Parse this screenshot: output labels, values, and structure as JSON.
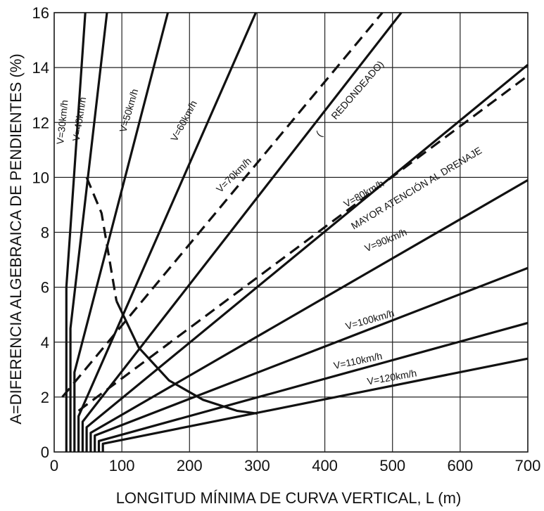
{
  "chart_data": {
    "type": "line",
    "title": "",
    "xlabel": "LONGITUD MÍNIMA DE CURVA VERTICAL, L (m)",
    "ylabel": "A=DIFERENCIA ALGEBRAICA DE PENDIENTES (%)",
    "xlim": [
      0,
      700
    ],
    "ylim": [
      0,
      16
    ],
    "xticks": [
      "0",
      "100",
      "200",
      "300",
      "400",
      "500",
      "600",
      "700"
    ],
    "yticks": [
      "0",
      "2",
      "4",
      "6",
      "8",
      "10",
      "12",
      "14",
      "16"
    ],
    "grid": true,
    "colors": {
      "line": "#111111",
      "grid": "#222222"
    },
    "series": [
      {
        "name": "V=30km/h",
        "style": "solid",
        "points": [
          [
            18,
            0
          ],
          [
            18,
            6
          ],
          [
            46,
            16
          ]
        ]
      },
      {
        "name": "V=40km/h",
        "style": "solid",
        "points": [
          [
            24,
            0
          ],
          [
            24,
            4.5
          ],
          [
            78,
            16
          ]
        ]
      },
      {
        "name": "V=50km/h",
        "style": "solid",
        "points": [
          [
            30,
            0
          ],
          [
            30,
            2.9
          ],
          [
            168,
            16
          ]
        ]
      },
      {
        "name": "V=60km/h",
        "style": "solid",
        "points": [
          [
            36,
            0
          ],
          [
            36,
            1.3
          ],
          [
            298,
            16
          ]
        ]
      },
      {
        "name": "V=70km/h",
        "style": "solid",
        "points": [
          [
            42,
            0
          ],
          [
            42,
            1.1
          ],
          [
            513,
            16
          ]
        ]
      },
      {
        "name": "V=80km/h",
        "style": "solid",
        "points": [
          [
            48,
            0
          ],
          [
            48,
            0.9
          ],
          [
            700,
            14.1
          ]
        ]
      },
      {
        "name": "V=90km/h",
        "style": "solid",
        "points": [
          [
            54,
            0
          ],
          [
            54,
            0.7
          ],
          [
            700,
            9.9
          ]
        ]
      },
      {
        "name": "V=100km/h",
        "style": "solid",
        "points": [
          [
            60,
            0
          ],
          [
            60,
            0.6
          ],
          [
            700,
            6.7
          ]
        ]
      },
      {
        "name": "V=110km/h",
        "style": "solid",
        "points": [
          [
            66,
            0
          ],
          [
            66,
            0.4
          ],
          [
            700,
            4.7
          ]
        ]
      },
      {
        "name": "V=120km/h",
        "style": "solid",
        "points": [
          [
            72,
            0
          ],
          [
            72,
            0.3
          ],
          [
            700,
            3.4
          ]
        ]
      },
      {
        "name": "(REDONDEADO)",
        "style": "dashed",
        "points": [
          [
            12,
            2
          ],
          [
            485,
            16
          ]
        ]
      },
      {
        "name": "MAYOR ATENCIÓN AL DRENAJE",
        "style": "dashed",
        "points": [
          [
            36,
            1.5
          ],
          [
            700,
            13.7
          ]
        ]
      },
      {
        "name": "",
        "style": "dashed",
        "points": [
          [
            48,
            10
          ],
          [
            70,
            8.7
          ],
          [
            92,
            5.5
          ]
        ]
      },
      {
        "name": "",
        "style": "solid",
        "points": [
          [
            92,
            5.5
          ],
          [
            125,
            3.8
          ],
          [
            170,
            2.6
          ],
          [
            220,
            1.9
          ],
          [
            270,
            1.5
          ],
          [
            300,
            1.4
          ]
        ]
      }
    ],
    "labels": [
      {
        "text": "V=30km/h",
        "x": 17,
        "y": 12.0,
        "angle": -84
      },
      {
        "text": "V=40km/h",
        "x": 42,
        "y": 12.1,
        "angle": -81
      },
      {
        "text": "V=50km/h",
        "x": 115,
        "y": 12.4,
        "angle": -74
      },
      {
        "text": "V=60km/h",
        "x": 196,
        "y": 12.0,
        "angle": -62
      },
      {
        "text": "V=70km/h",
        "x": 269,
        "y": 10.0,
        "angle": -45
      },
      {
        "text": "REDONDEADO)",
        "x": 452,
        "y": 13.1,
        "angle": -49
      },
      {
        "text": "(",
        "x": 395,
        "y": 11.5,
        "angle": -49
      },
      {
        "text": "V=80km/h",
        "x": 460,
        "y": 9.3,
        "angle": -30
      },
      {
        "text": "MAYOR ATENCIÓN AL DRENAJE",
        "x": 538,
        "y": 9.5,
        "angle": -31
      },
      {
        "text": "V=90km/h",
        "x": 492,
        "y": 7.6,
        "angle": -23
      },
      {
        "text": "V=100km/h",
        "x": 468,
        "y": 4.7,
        "angle": -16
      },
      {
        "text": "V=110km/h",
        "x": 450,
        "y": 3.2,
        "angle": -12
      },
      {
        "text": "V=120km/h",
        "x": 500,
        "y": 2.6,
        "angle": -10
      }
    ]
  }
}
